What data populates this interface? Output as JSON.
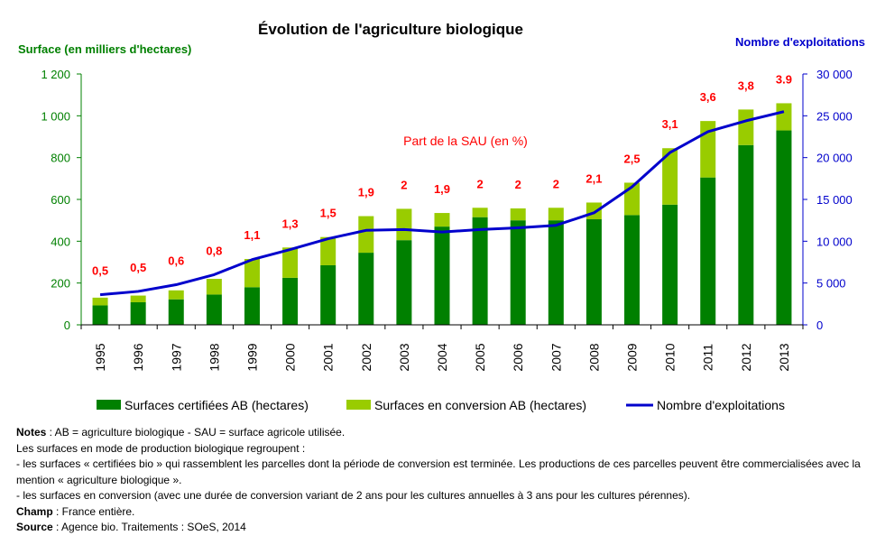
{
  "chart_data": {
    "type": "bar",
    "title": "Évolution de l'agriculture biologique",
    "ylabel_left": "Surface (en milliers d'hectares)",
    "ylabel_right": "Nombre d'exploitations",
    "sau_label": "Part de la SAU (en %)",
    "categories": [
      "1995",
      "1996",
      "1997",
      "1998",
      "1999",
      "2000",
      "2001",
      "2002",
      "2003",
      "2004",
      "2005",
      "2006",
      "2007",
      "2008",
      "2009",
      "2010",
      "2011",
      "2012",
      "2013"
    ],
    "ylim_left": [
      0,
      1200
    ],
    "ylim_right": [
      0,
      30000
    ],
    "yticks_left": [
      "0",
      "200",
      "400",
      "600",
      "800",
      "1 000",
      "1 200"
    ],
    "yticks_right": [
      "0",
      "5 000",
      "10 000",
      "15 000",
      "20 000",
      "25 000",
      "30 000"
    ],
    "series": [
      {
        "name": "Surfaces certifiées AB (hectares)",
        "type": "bar",
        "axis": "left",
        "color": "#008000",
        "values": [
          93,
          108,
          122,
          145,
          180,
          225,
          285,
          345,
          405,
          470,
          515,
          500,
          500,
          505,
          525,
          575,
          705,
          860,
          930
        ]
      },
      {
        "name": "Surfaces en conversion AB (hectares)",
        "type": "bar",
        "axis": "left",
        "color": "#99cc00",
        "values": [
          37,
          32,
          43,
          75,
          135,
          145,
          135,
          175,
          150,
          65,
          45,
          57,
          60,
          80,
          155,
          270,
          270,
          170,
          130
        ]
      },
      {
        "name": "Nombre d'exploitations",
        "type": "line",
        "axis": "right",
        "color": "#0000cc",
        "values": [
          3600,
          4000,
          4800,
          6000,
          7800,
          9000,
          10300,
          11300,
          11400,
          11100,
          11400,
          11600,
          11900,
          13400,
          16500,
          20600,
          23100,
          24400,
          25500
        ]
      }
    ],
    "sau_share": [
      "0,5",
      "0,5",
      "0,6",
      "0,8",
      "1,1",
      "1,3",
      "1,5",
      "1,9",
      "2",
      "1,9",
      "2",
      "2",
      "2",
      "2,1",
      "2,5",
      "3,1",
      "3,6",
      "3,8",
      "3.9"
    ],
    "sau_color": "#ff0000",
    "left_axis_color": "#008000",
    "right_axis_color": "#0000cc",
    "grid": false,
    "legend_position": "bottom"
  },
  "notes": {
    "line1_bold": "Notes",
    "line1": " : AB = agriculture biologique -  SAU = surface agricole utilisée.",
    "line2": "Les surfaces en mode de production biologique regroupent :",
    "line3": "-     les surfaces « certifiées bio » qui rassemblent les parcelles dont la période de conversion est terminée. Les productions de ces parcelles peuvent être commercialisées avec la mention « agriculture biologique ».",
    "line4": "-     les surfaces en conversion (avec une durée de conversion variant de 2 ans pour les cultures annuelles à 3 ans pour les cultures pérennes).",
    "champ_bold": "Champ",
    "champ": " : France entière.",
    "source_bold": "Source",
    "source": " : Agence bio. Traitements : SOeS, 2014"
  }
}
